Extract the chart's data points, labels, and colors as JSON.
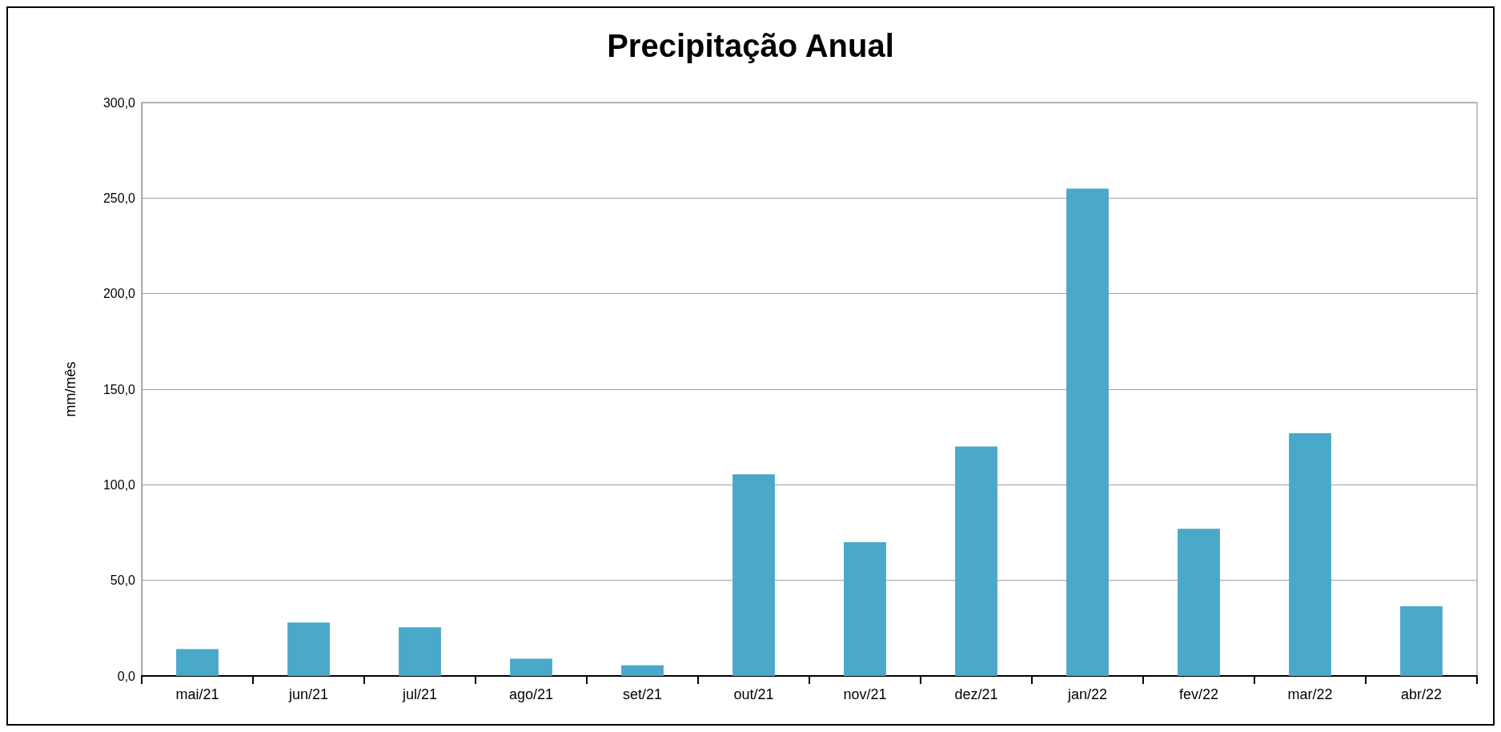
{
  "chart_data": {
    "type": "bar",
    "title": "Precipitação Anual",
    "ylabel": "mm/mês",
    "categories": [
      "mai/21",
      "jun/21",
      "jul/21",
      "ago/21",
      "set/21",
      "out/21",
      "nov/21",
      "dez/21",
      "jan/22",
      "fev/22",
      "mar/22",
      "abr/22"
    ],
    "values": [
      14,
      28,
      25.5,
      9,
      5.5,
      105.5,
      70,
      120,
      255,
      77,
      127,
      36.5
    ],
    "color": "#4aa8c8",
    "ylim": [
      0,
      300
    ],
    "yticks": [
      {
        "value": 0,
        "label": "0,0"
      },
      {
        "value": 50,
        "label": "50,0"
      },
      {
        "value": 100,
        "label": "100,0"
      },
      {
        "value": 150,
        "label": "150,0"
      },
      {
        "value": 200,
        "label": "200,0"
      },
      {
        "value": 250,
        "label": "250,0"
      },
      {
        "value": 300,
        "label": "300,0"
      }
    ],
    "grid": "y"
  }
}
